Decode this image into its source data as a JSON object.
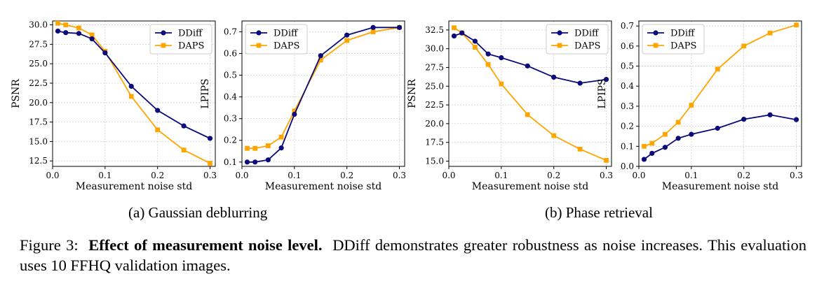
{
  "colors": {
    "series1": "#0a0a7a",
    "series2": "#ffa500",
    "grid": "#d0d0d0"
  },
  "chart_data": [
    {
      "type": "line",
      "xlabel": "Measurement noise std",
      "ylabel": "PSNR",
      "xlim": [
        0,
        0.31
      ],
      "ylim": [
        11.8,
        30.5
      ],
      "xticks": [
        "0.0",
        "0.1",
        "0.2",
        "0.3"
      ],
      "xtick_values": [
        0,
        0.1,
        0.2,
        0.3
      ],
      "yticks": [
        "12.5",
        "15.0",
        "17.5",
        "20.0",
        "22.5",
        "25.0",
        "27.5",
        "30.0"
      ],
      "ytick_values": [
        12.5,
        15,
        17.5,
        20,
        22.5,
        25,
        27.5,
        30
      ],
      "x": [
        0.01,
        0.025,
        0.05,
        0.075,
        0.1,
        0.15,
        0.2,
        0.25,
        0.3
      ],
      "grid": true,
      "legend": "top-right",
      "series": [
        {
          "name": "DDiff",
          "marker": "circle",
          "values": [
            29.2,
            29.0,
            28.9,
            28.2,
            26.4,
            22.1,
            19.0,
            17.0,
            15.4
          ]
        },
        {
          "name": "DAPS",
          "marker": "square",
          "values": [
            30.2,
            30.0,
            29.6,
            28.7,
            26.6,
            20.8,
            16.5,
            13.9,
            12.2
          ]
        }
      ]
    },
    {
      "type": "line",
      "xlabel": "Measurement noise std",
      "ylabel": "LPIPS",
      "xlim": [
        0,
        0.31
      ],
      "ylim": [
        0.08,
        0.75
      ],
      "xticks": [
        "0.0",
        "0.1",
        "0.2",
        "0.3"
      ],
      "xtick_values": [
        0,
        0.1,
        0.2,
        0.3
      ],
      "yticks": [
        "0.1",
        "0.2",
        "0.3",
        "0.4",
        "0.5",
        "0.6",
        "0.7"
      ],
      "ytick_values": [
        0.1,
        0.2,
        0.3,
        0.4,
        0.5,
        0.6,
        0.7
      ],
      "x": [
        0.01,
        0.025,
        0.05,
        0.075,
        0.1,
        0.15,
        0.2,
        0.25,
        0.3
      ],
      "grid": true,
      "legend": "top-left",
      "series": [
        {
          "name": "DDiff",
          "marker": "circle",
          "values": [
            0.1,
            0.1,
            0.11,
            0.165,
            0.32,
            0.59,
            0.685,
            0.72,
            0.72
          ]
        },
        {
          "name": "DAPS",
          "marker": "square",
          "values": [
            0.163,
            0.163,
            0.175,
            0.215,
            0.335,
            0.57,
            0.66,
            0.7,
            0.72
          ]
        }
      ]
    },
    {
      "type": "line",
      "xlabel": "Measurement noise std",
      "ylabel": "PSNR",
      "xlim": [
        0,
        0.31
      ],
      "ylim": [
        14.3,
        33.7
      ],
      "xticks": [
        "0.0",
        "0.1",
        "0.2",
        "0.3"
      ],
      "xtick_values": [
        0,
        0.1,
        0.2,
        0.3
      ],
      "yticks": [
        "15.0",
        "17.5",
        "20.0",
        "22.5",
        "25.0",
        "27.5",
        "30.0",
        "32.5"
      ],
      "ytick_values": [
        15,
        17.5,
        20,
        22.5,
        25,
        27.5,
        30,
        32.5
      ],
      "x": [
        0.01,
        0.025,
        0.05,
        0.075,
        0.1,
        0.15,
        0.2,
        0.25,
        0.3
      ],
      "grid": true,
      "legend": "top-right",
      "series": [
        {
          "name": "DDiff",
          "marker": "circle",
          "values": [
            31.7,
            32.1,
            31.0,
            29.3,
            28.8,
            27.7,
            26.2,
            25.4,
            25.9
          ]
        },
        {
          "name": "DAPS",
          "marker": "square",
          "values": [
            32.8,
            32.1,
            30.2,
            27.9,
            25.3,
            21.2,
            18.4,
            16.6,
            15.1
          ]
        }
      ]
    },
    {
      "type": "line",
      "xlabel": "Measurement noise std",
      "ylabel": "LPIPS",
      "xlim": [
        0,
        0.31
      ],
      "ylim": [
        0,
        0.725
      ],
      "xticks": [
        "0.0",
        "0.1",
        "0.2",
        "0.3"
      ],
      "xtick_values": [
        0,
        0.1,
        0.2,
        0.3
      ],
      "yticks": [
        "0.0",
        "0.1",
        "0.2",
        "0.3",
        "0.4",
        "0.5",
        "0.6",
        "0.7"
      ],
      "ytick_values": [
        0,
        0.1,
        0.2,
        0.3,
        0.4,
        0.5,
        0.6,
        0.7
      ],
      "x": [
        0.01,
        0.025,
        0.05,
        0.075,
        0.1,
        0.15,
        0.2,
        0.25,
        0.3
      ],
      "grid": true,
      "legend": "top-left",
      "series": [
        {
          "name": "DDiff",
          "marker": "circle",
          "values": [
            0.035,
            0.065,
            0.095,
            0.14,
            0.16,
            0.19,
            0.235,
            0.257,
            0.233
          ]
        },
        {
          "name": "DAPS",
          "marker": "square",
          "values": [
            0.1,
            0.115,
            0.16,
            0.22,
            0.305,
            0.485,
            0.6,
            0.665,
            0.705
          ]
        }
      ]
    }
  ],
  "subcaptions": {
    "a": "(a) Gaussian deblurring",
    "b": "(b) Phase retrieval"
  },
  "caption": {
    "prefix": "Figure 3:",
    "bold": "Effect of measurement noise level.",
    "text": "DDiff demonstrates greater robustness as noise increases. This evaluation uses 10 FFHQ validation images."
  }
}
